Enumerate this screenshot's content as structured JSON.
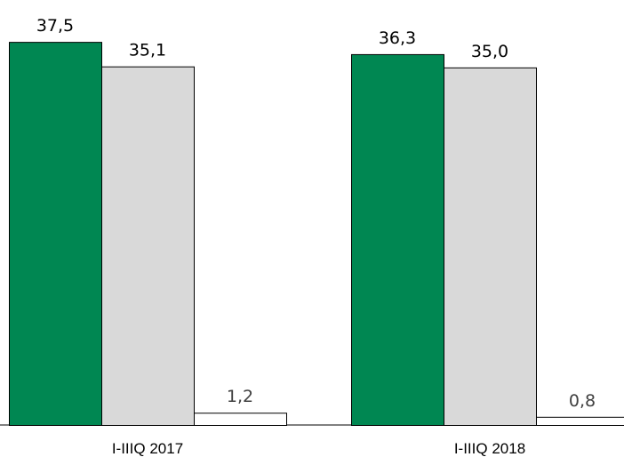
{
  "chart_data": {
    "type": "bar",
    "categories": [
      "I-IIIQ 2017",
      "I-IIIQ 2018"
    ],
    "series": [
      {
        "values": [
          37.5,
          36.3
        ],
        "labels": [
          "37,5",
          "36,3"
        ],
        "color": "#008752"
      },
      {
        "values": [
          35.1,
          35.0
        ],
        "labels": [
          "35,1",
          "35,0"
        ],
        "color": "#d9d9d9"
      },
      {
        "values": [
          1.2,
          0.8
        ],
        "labels": [
          "1,2",
          "0,8"
        ],
        "color": "#ffffff"
      }
    ],
    "ylim": [
      0,
      37.5
    ],
    "grid": false,
    "legend": "none"
  }
}
